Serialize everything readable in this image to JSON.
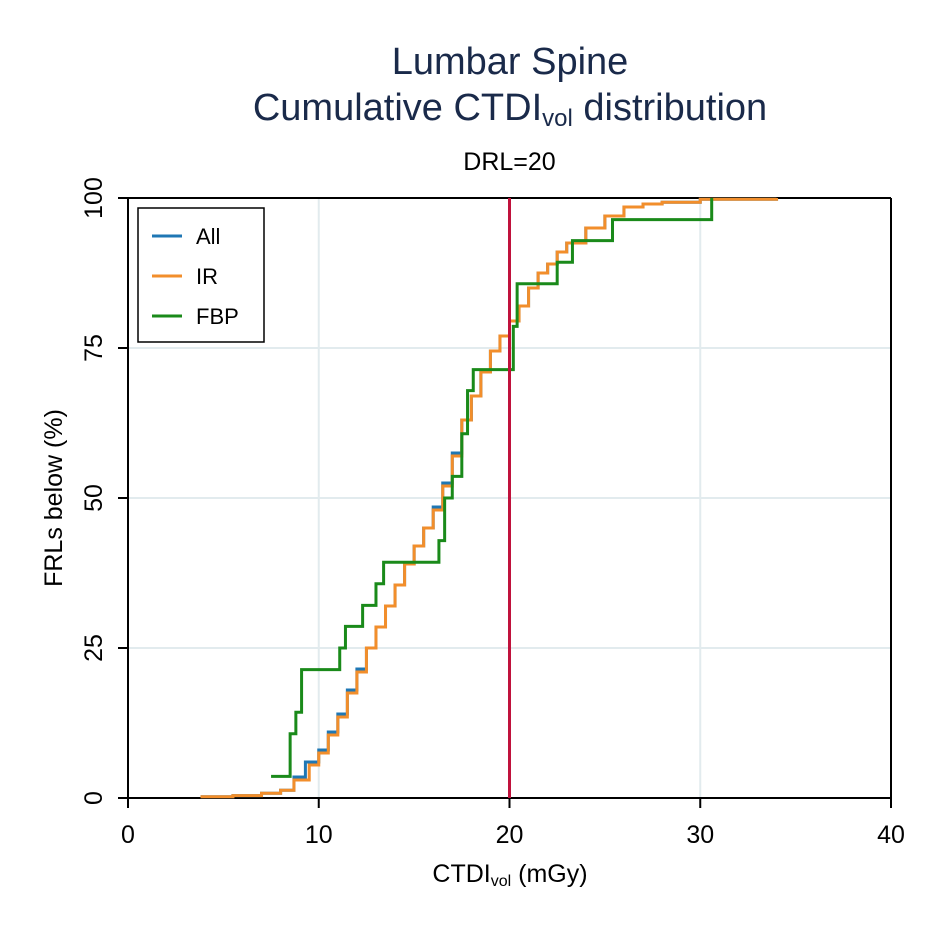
{
  "chart_data": {
    "type": "step",
    "title": [
      "Lumbar Spine",
      [
        "Cumulative CTDI",
        "vol",
        " distribution"
      ]
    ],
    "annotation": "DRL=20",
    "reference_line": {
      "x": 20,
      "color": "#c0123c"
    },
    "xlabel": [
      "CTDI",
      "vol",
      " (mGy)"
    ],
    "ylabel": "FRLs below (%)",
    "xlim": [
      0,
      40
    ],
    "xticks": [
      0,
      10,
      20,
      30,
      40
    ],
    "ylim": [
      0,
      100
    ],
    "yticks": [
      0,
      25,
      50,
      75,
      100
    ],
    "grid": true,
    "legend": "upper-left",
    "series": [
      {
        "name": "All",
        "color": "#1f77b4",
        "x": [
          3.8,
          5.5,
          7,
          8,
          8.7,
          9.3,
          10,
          10.5,
          11,
          11.5,
          12,
          12.5,
          13,
          13.5,
          14,
          14.5,
          15,
          15.5,
          16,
          16.5,
          17,
          17.5,
          18,
          18.5,
          19,
          19.5,
          20,
          20.5,
          21,
          21.5,
          22,
          22.5,
          23,
          24,
          25,
          26,
          27,
          28,
          30,
          34
        ],
        "values": [
          0.2,
          0.4,
          0.8,
          1.3,
          3.5,
          6,
          8,
          11,
          14,
          18,
          21.5,
          25,
          28.5,
          32,
          35.5,
          39,
          42,
          45,
          48.5,
          52.5,
          57.5,
          63,
          67,
          71,
          74.5,
          77,
          79.5,
          82,
          85,
          87.5,
          89,
          91,
          92.5,
          95,
          97,
          98.5,
          99,
          99.3,
          99.8,
          100
        ]
      },
      {
        "name": "IR",
        "color": "#f28e2b",
        "x": [
          3.8,
          5.5,
          7,
          8,
          8.7,
          9.5,
          10,
          10.5,
          11,
          11.5,
          12,
          12.5,
          13,
          13.5,
          14,
          14.5,
          15,
          15.5,
          16,
          16.5,
          17,
          17.5,
          18,
          18.5,
          19,
          19.5,
          20,
          20.5,
          21,
          21.5,
          22,
          22.5,
          23,
          24,
          25,
          26,
          27,
          28,
          30,
          34
        ],
        "values": [
          0.2,
          0.4,
          0.8,
          1.3,
          3,
          5.5,
          7.5,
          10.5,
          13.5,
          17.5,
          21,
          25,
          28.5,
          32,
          35.5,
          39,
          42,
          45,
          48,
          52,
          57,
          63,
          67,
          71,
          74.5,
          77,
          79.5,
          82,
          85,
          87.5,
          89,
          91,
          92.5,
          95,
          97,
          98.5,
          99,
          99.3,
          99.8,
          100
        ]
      },
      {
        "name": "FBP",
        "color": "#1a8a1a",
        "x": [
          7.5,
          8.5,
          8.8,
          9.1,
          11.1,
          11.4,
          12.3,
          13,
          13.4,
          16.3,
          16.6,
          17,
          17.5,
          17.8,
          18.1,
          20.2,
          20.4,
          22.5,
          23.3,
          25.4,
          30.6
        ],
        "values": [
          3.6,
          10.7,
          14.3,
          21.4,
          25,
          28.6,
          32.1,
          35.7,
          39.3,
          42.9,
          50,
          53.6,
          60.7,
          67.9,
          71.4,
          78.6,
          85.7,
          89.3,
          92.9,
          96.4,
          100
        ]
      }
    ]
  }
}
